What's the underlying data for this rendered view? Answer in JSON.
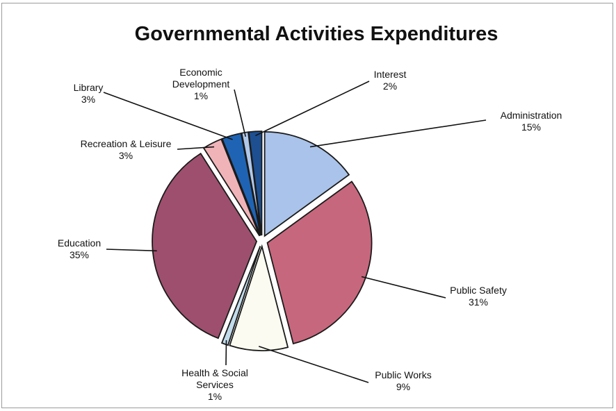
{
  "chart_data": {
    "type": "pie",
    "title": "Governmental Activities Expenditures",
    "start_angle_deg": 0,
    "direction": "clockwise",
    "exploded": true,
    "legend": "none",
    "data_labels": "outside-with-leader-lines",
    "slices": [
      {
        "category": "Administration",
        "lines": [
          "Administration"
        ],
        "percent_label": "15%",
        "value": 15,
        "color": "#a9c3ea"
      },
      {
        "category": "Public Safety",
        "lines": [
          "Public Safety"
        ],
        "percent_label": "31%",
        "value": 31,
        "color": "#c7677d"
      },
      {
        "category": "Public Works",
        "lines": [
          "Public Works"
        ],
        "percent_label": "9%",
        "value": 9,
        "color": "#fbfbf1"
      },
      {
        "category": "Health & Social Services",
        "lines": [
          "Health & Social",
          "Services"
        ],
        "percent_label": "1%",
        "value": 1,
        "color": "#c2dcec"
      },
      {
        "category": "Education",
        "lines": [
          "Education"
        ],
        "percent_label": "35%",
        "value": 35,
        "color": "#9e4f6d"
      },
      {
        "category": "Recreation & Leisure",
        "lines": [
          "Recreation & Leisure"
        ],
        "percent_label": "3%",
        "value": 3,
        "color": "#f0b4b8"
      },
      {
        "category": "Library",
        "lines": [
          "Library"
        ],
        "percent_label": "3%",
        "value": 3,
        "color": "#1f64b4"
      },
      {
        "category": "Economic Development",
        "lines": [
          "Economic",
          "Development"
        ],
        "percent_label": "1%",
        "value": 1,
        "color": "#b0c8ea"
      },
      {
        "category": "Interest",
        "lines": [
          "Interest"
        ],
        "percent_label": "2%",
        "value": 2,
        "color": "#1d4f91"
      }
    ]
  }
}
